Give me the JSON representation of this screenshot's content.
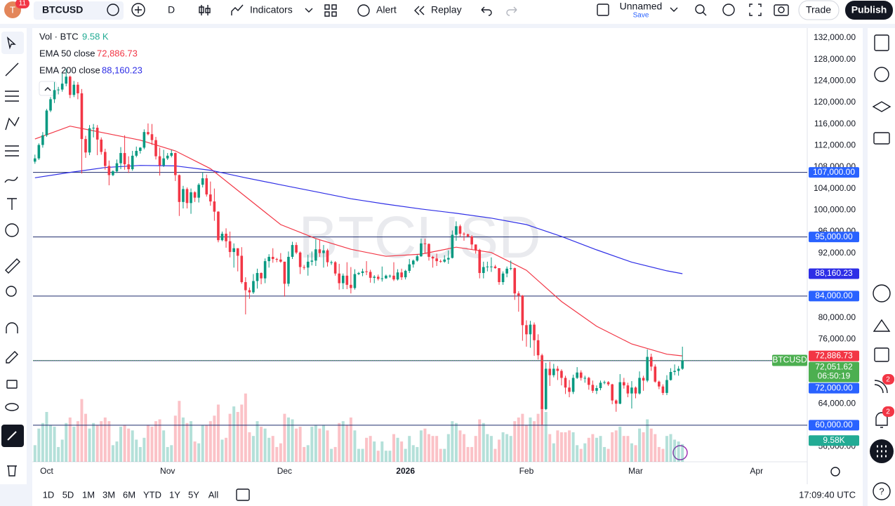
{
  "toolbar": {
    "symbol": "BTCUSD",
    "badge": "11",
    "interval": "D",
    "indicators": "Indicators",
    "alert": "Alert",
    "replay": "Replay",
    "layout_name": "Unnamed",
    "save": "Save",
    "trade": "Trade",
    "publish": "Publish"
  },
  "watermark": "BTCUSD",
  "ranges": [
    "1D",
    "5D",
    "1M",
    "3M",
    "6M",
    "YTD",
    "1Y",
    "5Y",
    "All"
  ],
  "clock": "17:09:40 UTC",
  "right_badges": [
    "2",
    "2"
  ],
  "chart_data": {
    "type": "candlestick",
    "up_color": "#089981",
    "down_color": "#f23645",
    "ylim": [
      53200,
      133830
    ],
    "xlim": [
      -0.5,
      198
    ],
    "vlim": [
      0,
      235000
    ],
    "grid": false,
    "yticks": [
      {
        "value": 132000,
        "label": "132,000.00"
      },
      {
        "value": 128000,
        "label": "128,000.00"
      },
      {
        "value": 124000,
        "label": "124,000.00"
      },
      {
        "value": 120000,
        "label": "120,000.00"
      },
      {
        "value": 116000,
        "label": "116,000.00"
      },
      {
        "value": 112000,
        "label": "112,000.00"
      },
      {
        "value": 108000,
        "label": "108,000.00"
      },
      {
        "value": 104000,
        "label": "104,000.00"
      },
      {
        "value": 100000,
        "label": "100,000.00"
      },
      {
        "value": 96000,
        "label": "96,000.00"
      },
      {
        "value": 92000,
        "label": "92,000.00"
      },
      {
        "value": 80000,
        "label": "80,000.00"
      },
      {
        "value": 76000,
        "label": "76,000.00"
      },
      {
        "value": 64000,
        "label": "64,000.00"
      },
      {
        "value": 56000,
        "label": "56,000.00"
      }
    ],
    "xticks": [
      {
        "value": 3,
        "label": "Oct"
      },
      {
        "value": 34,
        "label": "Nov"
      },
      {
        "value": 64,
        "label": "Dec"
      },
      {
        "value": 95,
        "label": "2026"
      },
      {
        "value": 126,
        "label": "Feb"
      },
      {
        "value": 154,
        "label": "Mar"
      },
      {
        "value": 185,
        "label": "Apr"
      }
    ],
    "levels": [
      {
        "value": 107000,
        "label": "107,000.00"
      },
      {
        "value": 95000,
        "label": "95,000.00"
      },
      {
        "value": 84000,
        "label": "84,000.00"
      },
      {
        "value": 72000,
        "label": "72,000.00"
      },
      {
        "value": 60000,
        "label": "60,000.00"
      }
    ],
    "level_color": "#1c2a6b",
    "label_color": "#2962ff",
    "last_price": {
      "symbol": "BTCUSD",
      "label": "72,051.62",
      "countdown": "06:50:19",
      "color": "#4caf50"
    },
    "volume_name": "Vol · BTC",
    "volume_legend_label": "9.58 K",
    "volume_axis_label": "9.58K",
    "volume_label_color": "#22ab94",
    "ema": [
      {
        "name": "EMA 50 close",
        "color": "#f23645",
        "last_label": "72,886.73",
        "x": [
          0,
          9,
          18,
          27,
          36,
          45,
          54,
          63,
          72,
          81,
          90,
          99,
          108,
          117,
          126,
          135,
          144,
          153,
          162,
          166
        ],
        "values": [
          113200,
          115600,
          114300,
          113000,
          111000,
          107700,
          102500,
          97300,
          94700,
          92700,
          91400,
          91800,
          93100,
          92100,
          88800,
          83000,
          78400,
          75100,
          73200,
          72886.73
        ]
      },
      {
        "name": "EMA 200 close",
        "color": "#2e2ee6",
        "last_label": "88,160.23",
        "x": [
          0,
          9,
          18,
          27,
          36,
          45,
          54,
          63,
          72,
          81,
          90,
          99,
          108,
          117,
          126,
          135,
          144,
          153,
          162,
          166
        ],
        "values": [
          106000,
          107000,
          107900,
          108300,
          108200,
          107400,
          106000,
          104700,
          103400,
          102100,
          101100,
          100200,
          99400,
          98500,
          97300,
          95100,
          92600,
          90300,
          88700,
          88160.23
        ]
      }
    ],
    "candles": [
      [
        109000,
        110300,
        108600,
        109600
      ],
      [
        109600,
        112400,
        109300,
        112100
      ],
      [
        112100,
        114500,
        111600,
        113900
      ],
      [
        113900,
        118800,
        113600,
        118500
      ],
      [
        118500,
        121000,
        118200,
        120600
      ],
      [
        120600,
        123800,
        119900,
        122300
      ],
      [
        122300,
        122900,
        121500,
        122400
      ],
      [
        122400,
        125400,
        122000,
        123500
      ],
      [
        123500,
        126200,
        123000,
        124800
      ],
      [
        124800,
        125000,
        120800,
        121400
      ],
      [
        121400,
        124000,
        121000,
        123300
      ],
      [
        123300,
        123800,
        120600,
        121700
      ],
      [
        121700,
        122500,
        106800,
        113200
      ],
      [
        113200,
        113800,
        109700,
        110700
      ],
      [
        110700,
        115800,
        110200,
        115200
      ],
      [
        115200,
        116000,
        113500,
        115300
      ],
      [
        115300,
        115800,
        110200,
        113100
      ],
      [
        113100,
        113500,
        110300,
        110800
      ],
      [
        110800,
        111400,
        107500,
        108200
      ],
      [
        108200,
        109200,
        104600,
        106500
      ],
      [
        106500,
        107400,
        106300,
        107200
      ],
      [
        107200,
        109400,
        106900,
        108700
      ],
      [
        108700,
        111700,
        107600,
        110600
      ],
      [
        110600,
        113900,
        107500,
        108500
      ],
      [
        108500,
        110000,
        106900,
        107600
      ],
      [
        107600,
        111000,
        107300,
        110100
      ],
      [
        110100,
        111800,
        109800,
        111000
      ],
      [
        111000,
        111700,
        110500,
        111600
      ],
      [
        111600,
        115000,
        111300,
        114500
      ],
      [
        114500,
        116100,
        113900,
        114100
      ],
      [
        114100,
        116000,
        112100,
        113000
      ],
      [
        113000,
        113600,
        109400,
        110000
      ],
      [
        110000,
        111600,
        106400,
        108300
      ],
      [
        108300,
        111200,
        108000,
        109600
      ],
      [
        109600,
        110600,
        109300,
        110100
      ],
      [
        110100,
        111200,
        109800,
        110600
      ],
      [
        110600,
        110700,
        105400,
        106500
      ],
      [
        106500,
        106600,
        98900,
        101500
      ],
      [
        101500,
        104500,
        100300,
        103900
      ],
      [
        103900,
        104200,
        100300,
        101300
      ],
      [
        101300,
        104000,
        99300,
        103300
      ],
      [
        103300,
        103500,
        101500,
        102300
      ],
      [
        102300,
        105000,
        101400,
        104700
      ],
      [
        104700,
        107000,
        104200,
        105900
      ],
      [
        105900,
        106600,
        102500,
        102900
      ],
      [
        102900,
        105300,
        100800,
        101600
      ],
      [
        101600,
        104000,
        98000,
        99700
      ],
      [
        99700,
        99800,
        94000,
        94400
      ],
      [
        94400,
        96000,
        94200,
        95600
      ],
      [
        95600,
        96600,
        93000,
        94200
      ],
      [
        94200,
        96000,
        91200,
        92200
      ],
      [
        92200,
        93800,
        89300,
        92900
      ],
      [
        92900,
        92900,
        88600,
        91500
      ],
      [
        91500,
        93100,
        86300,
        86600
      ],
      [
        86600,
        87500,
        80600,
        85100
      ],
      [
        85100,
        85600,
        83500,
        84700
      ],
      [
        84700,
        88100,
        84400,
        86800
      ],
      [
        86800,
        89100,
        85400,
        88300
      ],
      [
        88300,
        88400,
        86200,
        87300
      ],
      [
        87300,
        91000,
        86400,
        90500
      ],
      [
        90500,
        91800,
        89300,
        91300
      ],
      [
        91300,
        92900,
        90200,
        90900
      ],
      [
        90900,
        91100,
        90300,
        90800
      ],
      [
        90800,
        92000,
        90200,
        90400
      ],
      [
        90400,
        90400,
        83900,
        86300
      ],
      [
        86300,
        92300,
        85800,
        91300
      ],
      [
        91300,
        94100,
        90900,
        93500
      ],
      [
        93500,
        94000,
        91800,
        92100
      ],
      [
        92100,
        92300,
        88100,
        89400
      ],
      [
        89400,
        89800,
        88900,
        89300
      ],
      [
        89300,
        91700,
        87800,
        90400
      ],
      [
        90400,
        92300,
        89700,
        90600
      ],
      [
        90600,
        94600,
        89600,
        92700
      ],
      [
        92700,
        94500,
        91300,
        92000
      ],
      [
        92000,
        93500,
        89300,
        92500
      ],
      [
        92500,
        92800,
        89500,
        90300
      ],
      [
        90300,
        90600,
        89800,
        90300
      ],
      [
        90300,
        90500,
        87800,
        88200
      ],
      [
        88200,
        90000,
        85200,
        86400
      ],
      [
        86400,
        88200,
        85300,
        87800
      ],
      [
        87800,
        90300,
        85300,
        86100
      ],
      [
        86100,
        89400,
        84500,
        85500
      ],
      [
        85500,
        89000,
        85200,
        88100
      ],
      [
        88100,
        88500,
        87900,
        88300
      ],
      [
        88300,
        89100,
        87700,
        88600
      ],
      [
        88600,
        90500,
        87900,
        88500
      ],
      [
        88500,
        88900,
        86500,
        87400
      ],
      [
        87400,
        87900,
        86400,
        87600
      ],
      [
        87600,
        88000,
        86900,
        87200
      ],
      [
        87200,
        89500,
        86700,
        87300
      ],
      [
        87300,
        88000,
        87200,
        87800
      ],
      [
        87800,
        88000,
        87400,
        87800
      ],
      [
        87800,
        90300,
        86800,
        87100
      ],
      [
        87100,
        89000,
        86900,
        88400
      ],
      [
        88400,
        89100,
        87000,
        87500
      ],
      [
        87500,
        88900,
        87100,
        88700
      ],
      [
        88700,
        90900,
        88300,
        89900
      ],
      [
        89900,
        90800,
        89300,
        90600
      ],
      [
        90600,
        91700,
        90400,
        91400
      ],
      [
        91400,
        94700,
        91300,
        93800
      ],
      [
        93800,
        94700,
        91900,
        93700
      ],
      [
        93700,
        93800,
        90600,
        91300
      ],
      [
        91300,
        91500,
        89300,
        91000
      ],
      [
        91000,
        91900,
        89600,
        90500
      ],
      [
        90500,
        90800,
        90200,
        90400
      ],
      [
        90400,
        91600,
        90200,
        90800
      ],
      [
        90800,
        92500,
        90000,
        91100
      ],
      [
        91100,
        96200,
        91000,
        95400
      ],
      [
        95400,
        97900,
        94300,
        97000
      ],
      [
        97000,
        97300,
        95000,
        95600
      ],
      [
        95600,
        95900,
        94300,
        95500
      ],
      [
        95500,
        95600,
        94900,
        95100
      ],
      [
        95100,
        95300,
        92700,
        93600
      ],
      [
        93600,
        93600,
        91900,
        92600
      ],
      [
        92600,
        92800,
        87300,
        88300
      ],
      [
        88300,
        90400,
        87300,
        89400
      ],
      [
        89400,
        90400,
        88600,
        89500
      ],
      [
        89500,
        91200,
        88500,
        89500
      ],
      [
        89500,
        89800,
        89100,
        89200
      ],
      [
        89200,
        89200,
        86100,
        86600
      ],
      [
        86600,
        88600,
        86100,
        88200
      ],
      [
        88200,
        89500,
        87500,
        89100
      ],
      [
        89100,
        90600,
        88800,
        89200
      ],
      [
        89200,
        89300,
        83300,
        84500
      ],
      [
        84500,
        84900,
        81100,
        84100
      ],
      [
        84100,
        84200,
        75700,
        78600
      ],
      [
        78600,
        79500,
        74600,
        76900
      ],
      [
        76900,
        79400,
        74400,
        78700
      ],
      [
        78700,
        79100,
        72900,
        75800
      ],
      [
        75800,
        76900,
        72200,
        73000
      ],
      [
        73000,
        73300,
        60100,
        63000
      ],
      [
        63000,
        71600,
        62800,
        70500
      ],
      [
        70500,
        71800,
        67300,
        69300
      ],
      [
        69300,
        71400,
        68900,
        70500
      ],
      [
        70500,
        71000,
        68400,
        70100
      ],
      [
        70100,
        70400,
        67400,
        68800
      ],
      [
        68800,
        69200,
        65800,
        67000
      ],
      [
        67000,
        68400,
        65200,
        66200
      ],
      [
        66200,
        69400,
        65800,
        68800
      ],
      [
        68800,
        70800,
        68600,
        69800
      ],
      [
        69800,
        70200,
        68300,
        68800
      ],
      [
        68800,
        69200,
        67900,
        68800
      ],
      [
        68800,
        69000,
        66600,
        67500
      ],
      [
        67500,
        68300,
        66000,
        66400
      ],
      [
        66400,
        67400,
        65800,
        66900
      ],
      [
        66900,
        68300,
        66500,
        67900
      ],
      [
        67900,
        68300,
        67600,
        68000
      ],
      [
        68000,
        68200,
        67300,
        67600
      ],
      [
        67600,
        67700,
        63900,
        64600
      ],
      [
        64600,
        64800,
        62500,
        64000
      ],
      [
        64000,
        69500,
        63900,
        68000
      ],
      [
        68000,
        68800,
        66800,
        67400
      ],
      [
        67400,
        67900,
        65200,
        65900
      ],
      [
        65900,
        68200,
        63100,
        67000
      ],
      [
        67000,
        67200,
        65000,
        65900
      ],
      [
        65900,
        70000,
        65700,
        68800
      ],
      [
        68800,
        69200,
        66400,
        68300
      ],
      [
        68300,
        74100,
        68000,
        72700
      ],
      [
        72700,
        73300,
        70100,
        70900
      ],
      [
        70900,
        71300,
        67900,
        68100
      ],
      [
        68100,
        68300,
        66700,
        67200
      ],
      [
        67200,
        67600,
        65600,
        66000
      ],
      [
        66000,
        69300,
        65600,
        68400
      ],
      [
        68400,
        70600,
        68300,
        69900
      ],
      [
        69900,
        71300,
        69300,
        70100
      ],
      [
        70100,
        71000,
        69200,
        70500
      ],
      [
        70500,
        74600,
        70300,
        72051.62
      ]
    ],
    "volume": [
      9000,
      18000,
      21000,
      27000,
      20000,
      19000,
      8000,
      12000,
      21000,
      24000,
      19000,
      22000,
      34000,
      26000,
      18000,
      21000,
      20000,
      22000,
      24000,
      22000,
      9000,
      11000,
      19000,
      20000,
      18000,
      17000,
      12000,
      8000,
      13000,
      20000,
      19000,
      22000,
      23000,
      17000,
      8000,
      9000,
      25000,
      33000,
      24000,
      21000,
      22000,
      11000,
      10000,
      20000,
      20000,
      22000,
      25000,
      31000,
      12000,
      13000,
      26000,
      30000,
      27000,
      31000,
      37000,
      16000,
      14000,
      22000,
      19000,
      18000,
      13000,
      14000,
      8000,
      10000,
      26000,
      24000,
      23000,
      18000,
      19000,
      8000,
      9000,
      19000,
      20000,
      18000,
      20000,
      17000,
      7000,
      8000,
      21000,
      22000,
      20000,
      24000,
      17000,
      7000,
      7000,
      13000,
      14000,
      11000,
      6000,
      11000,
      6000,
      6000,
      15000,
      13000,
      11000,
      7000,
      14000,
      9000,
      8000,
      17000,
      18000,
      15000,
      14000,
      14000,
      7000,
      7000,
      15000,
      22000,
      21000,
      17000,
      15000,
      8000,
      8000,
      14000,
      23000,
      21000,
      15000,
      14000,
      7000,
      12000,
      16000,
      15000,
      14000,
      22000,
      24000,
      26000,
      20000,
      24000,
      22000,
      26000,
      30000,
      27000,
      15000,
      10000,
      17000,
      16000,
      16000,
      17000,
      16000,
      9000,
      7000,
      10000,
      13000,
      15000,
      13000,
      14000,
      8000,
      7000,
      16000,
      17000,
      19000,
      14000,
      14000,
      10000,
      9000,
      18000,
      16000,
      23000,
      18000,
      15000,
      8000,
      7000,
      14000,
      15000,
      12000,
      11000,
      9580
    ]
  }
}
